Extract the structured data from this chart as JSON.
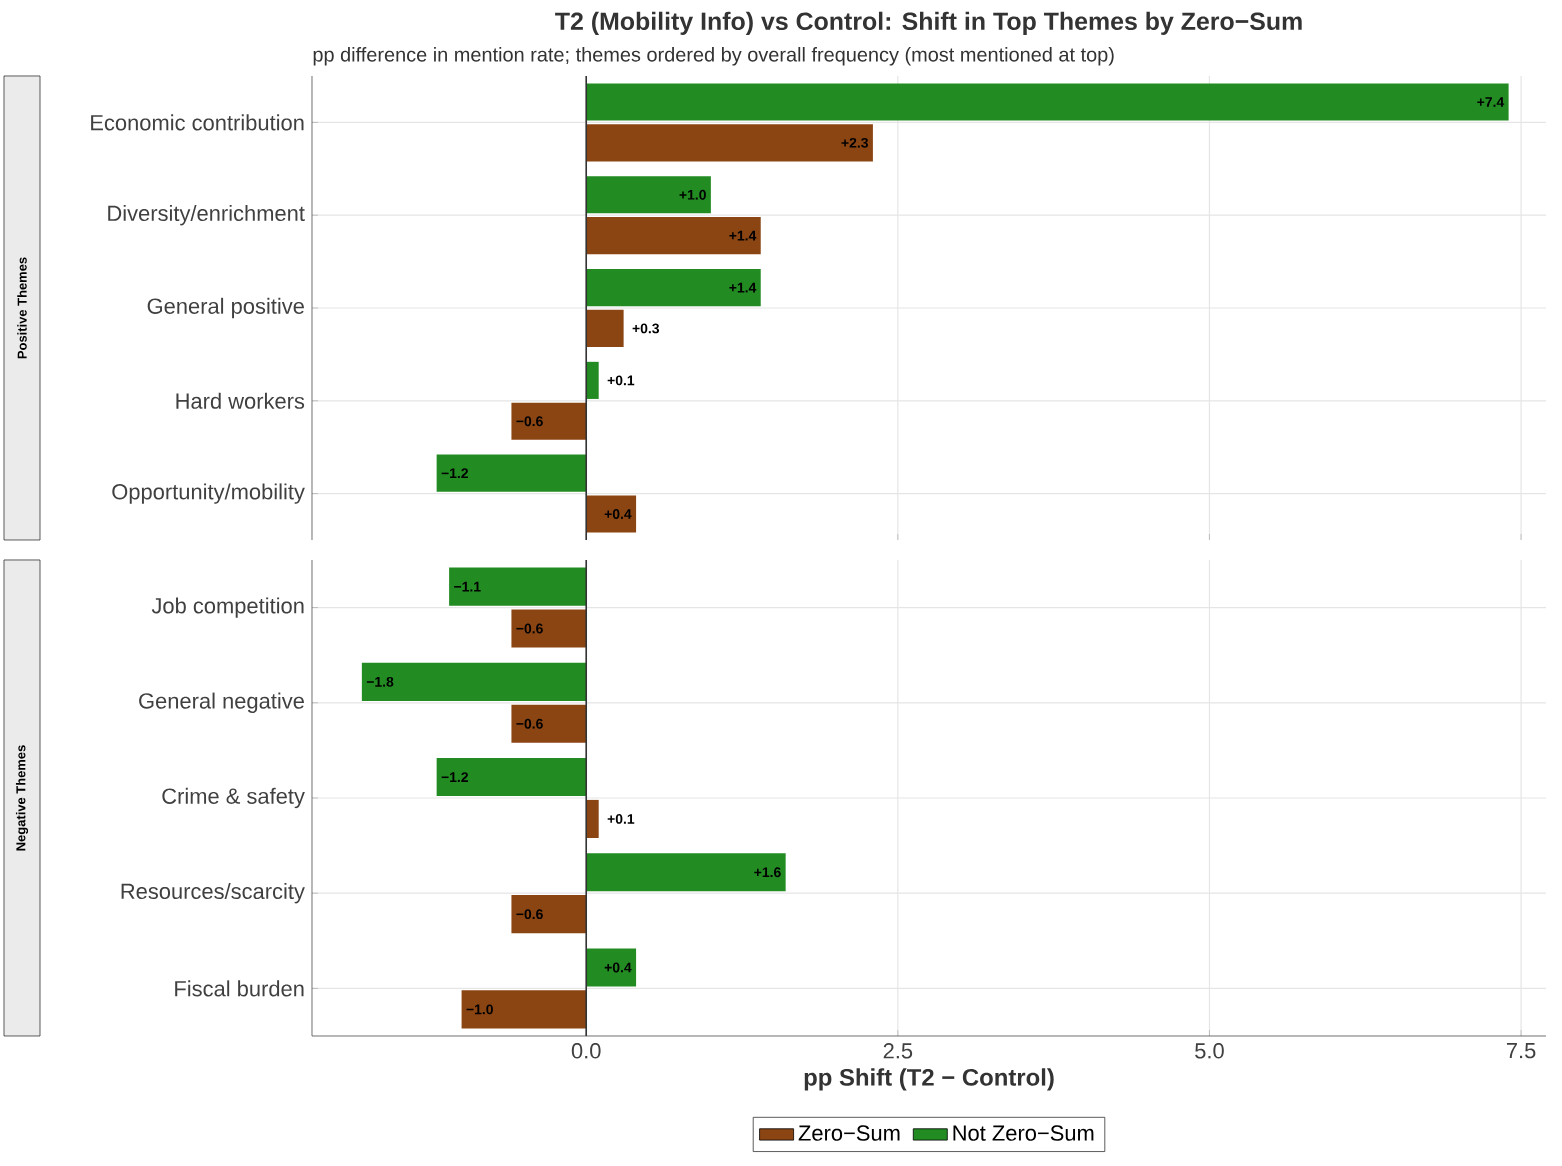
{
  "chart_data": [
    {
      "type": "bar",
      "orientation": "horizontal",
      "title": "T2 (Mobility Info) vs Control: Shift in Top Themes by Zero−Sum",
      "subtitle": "pp difference in mention rate; themes ordered by overall frequency (most mentioned at top)",
      "annotations": [
        "Positive Themes"
      ],
      "categories": [
        "Economic contribution",
        "Diversity/enrichment",
        "General positive",
        "Hard workers",
        "Opportunity/mobility"
      ],
      "series": [
        {
          "color": "#8b4513",
          "values": [
            2.3,
            1.4,
            0.3,
            -0.6,
            0.4
          ],
          "value_labels": [
            "+2.3",
            "+1.4",
            "+0.3",
            "−0.6",
            "+0.4"
          ]
        },
        {
          "color": "#228b22",
          "values": [
            7.4,
            1.0,
            1.4,
            0.1,
            -1.2
          ],
          "value_labels": [
            "+7.4",
            "+1.0",
            "+1.4",
            "+0.1",
            "−1.2"
          ]
        }
      ],
      "xlim": [
        -2.2,
        7.7
      ],
      "xticks": [
        {
          "value": 0,
          "label": null
        },
        {
          "value": 2.5,
          "label": null
        },
        {
          "value": 5.0,
          "label": null
        },
        {
          "value": 7.5,
          "label": null
        }
      ],
      "tick_labels": "y",
      "grid": true,
      "ref_lines": [
        {
          "axis": "x",
          "value": 0,
          "color": "#333333"
        }
      ]
    },
    {
      "type": "bar",
      "orientation": "horizontal",
      "xlabel": "pp Shift (T2 − Control)",
      "annotations": [
        "Negative Themes"
      ],
      "categories": [
        "Job competition",
        "General negative",
        "Crime & safety",
        "Resources/scarcity",
        "Fiscal burden"
      ],
      "series": [
        {
          "name": "Zero−Sum",
          "color": "#8b4513",
          "values": [
            -0.6,
            -0.6,
            0.1,
            -0.6,
            -1.0
          ],
          "value_labels": [
            "−0.6",
            "−0.6",
            "+0.1",
            "−0.6",
            "−1.0"
          ]
        },
        {
          "name": "Not Zero−Sum",
          "color": "#228b22",
          "values": [
            -1.1,
            -1.8,
            -1.2,
            1.6,
            0.4
          ],
          "value_labels": [
            "−1.1",
            "−1.8",
            "−1.2",
            "+1.6",
            "+0.4"
          ]
        }
      ],
      "xlim": [
        -2.2,
        7.7
      ],
      "xticks": [
        {
          "value": 0,
          "label": "0.0"
        },
        {
          "value": 2.5,
          "label": "2.5"
        },
        {
          "value": 5.0,
          "label": "5.0"
        },
        {
          "value": 7.5,
          "label": "7.5"
        }
      ],
      "grid": true,
      "legend": "bottom",
      "ref_lines": [
        {
          "axis": "x",
          "value": 0,
          "color": "#333333"
        }
      ]
    }
  ]
}
